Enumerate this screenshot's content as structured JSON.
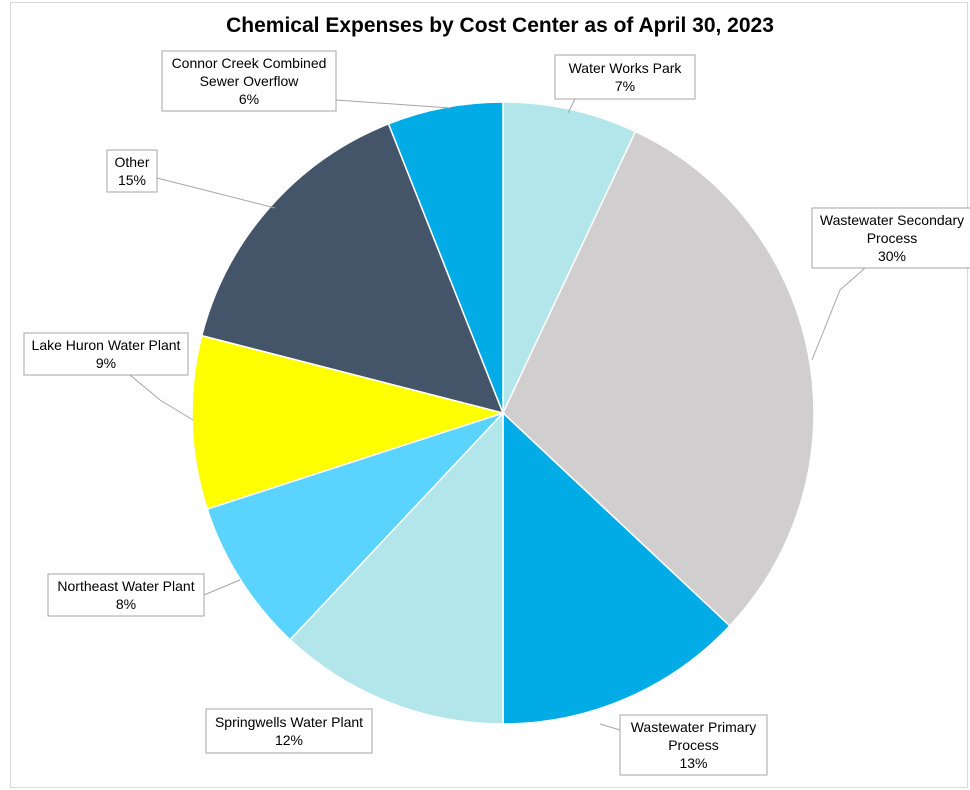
{
  "chart_data": {
    "type": "pie",
    "title": "Chemical Expenses by Cost Center as of April 30, 2023",
    "slices": [
      {
        "label_lines": [
          "Water Works Park"
        ],
        "pct_label": "7%",
        "value": 7,
        "color": "#B3E6EA"
      },
      {
        "label_lines": [
          "Wastewater Secondary",
          "Process"
        ],
        "pct_label": "30%",
        "value": 30,
        "color": "#D0CECF"
      },
      {
        "label_lines": [
          "Wastewater Primary",
          "Process"
        ],
        "pct_label": "13%",
        "value": 13,
        "color": "#00ABE6"
      },
      {
        "label_lines": [
          "Springwells Water Plant"
        ],
        "pct_label": "12%",
        "value": 12,
        "color": "#B3E6EA"
      },
      {
        "label_lines": [
          "Northeast Water Plant"
        ],
        "pct_label": "8%",
        "value": 8,
        "color": "#5AD3FF"
      },
      {
        "label_lines": [
          "Lake Huron Water Plant"
        ],
        "pct_label": "9%",
        "value": 9,
        "color": "#FFFF00"
      },
      {
        "label_lines": [
          "Other"
        ],
        "pct_label": "15%",
        "value": 15,
        "color": "#445469"
      },
      {
        "label_lines": [
          "Connor Creek Combined",
          "Sewer Overflow"
        ],
        "pct_label": "6%",
        "value": 6,
        "color": "#00ABE6"
      }
    ]
  }
}
